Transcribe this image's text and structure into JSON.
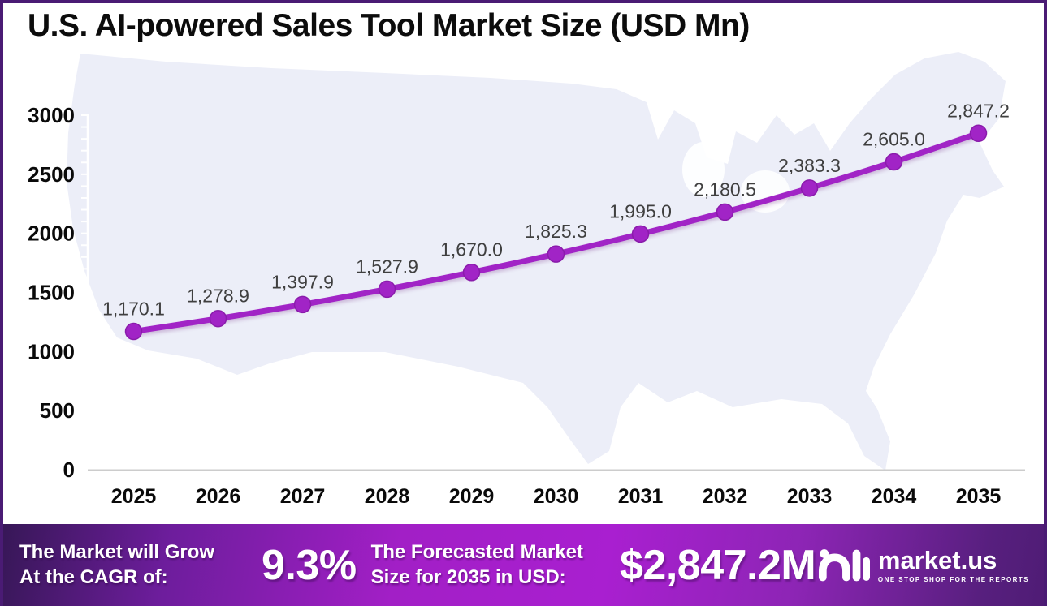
{
  "header": {
    "title": "U.S. AI-powered Sales Tool Market Size (USD Mn)"
  },
  "chart_data": {
    "type": "line",
    "title": "U.S. AI-powered Sales Tool Market Size (USD Mn)",
    "categories": [
      "2025",
      "2026",
      "2027",
      "2028",
      "2029",
      "2030",
      "2031",
      "2032",
      "2033",
      "2034",
      "2035"
    ],
    "series": [
      {
        "name": "U.S. AI-powered Sales Tool Market Size (USD Mn)",
        "values": [
          1170.1,
          1278.9,
          1397.9,
          1527.9,
          1670.0,
          1825.3,
          1995.0,
          2180.5,
          2383.3,
          2605.0,
          2847.2
        ]
      }
    ],
    "point_labels": [
      "1,170.1",
      "1,278.9",
      "1,397.9",
      "1,527.9",
      "1,670.0",
      "1,825.3",
      "1,995.0",
      "2,180.5",
      "2,383.3",
      "2,605.0",
      "2,847.2"
    ],
    "ylim": [
      0,
      3000
    ],
    "yticks": [
      0,
      500,
      1000,
      1500,
      2000,
      2500,
      3000
    ],
    "minor_tick_step": 100,
    "xlabel": "",
    "ylabel": "",
    "grid": false,
    "legend": "none",
    "line_color": "#a124c6",
    "marker_color": "#a124c6",
    "marker_edge_color": "#8a1bab",
    "point_label_color": "#3f3f3f",
    "axis_label_color": "#0a0a0a",
    "axis_line_color": "#ffffff",
    "baseline_color": "#cccccc",
    "map_fill": "#eceef8"
  },
  "footer": {
    "cagr_label_line1": "The Market will Grow",
    "cagr_label_line2": "At the CAGR of:",
    "cagr_value": "9.3%",
    "forecast_label_line1": "The Forecasted Market",
    "forecast_label_line2": "Size for 2035 in USD:",
    "forecast_value": "$2,847.2M",
    "logo": {
      "name": "market.us",
      "tagline": "ONE STOP SHOP FOR THE REPORTS"
    }
  },
  "colors": {
    "accent_purple": "#a124c6",
    "border_purple": "#4a1b74",
    "footer_gradient_start": "#371757",
    "footer_gradient_mid": "#a91fd0",
    "footer_gradient_end": "#4f1c75"
  }
}
